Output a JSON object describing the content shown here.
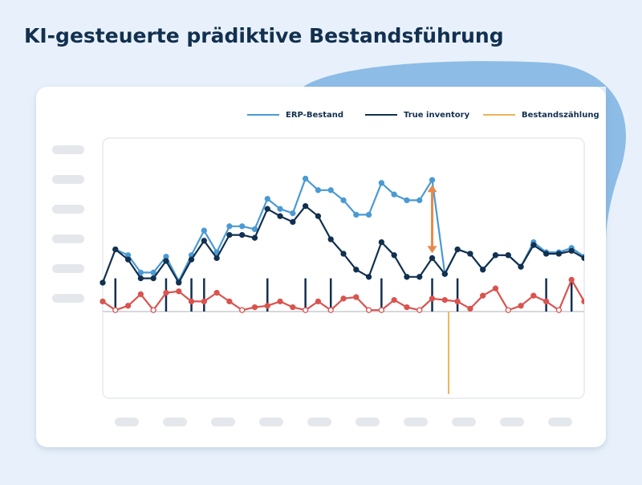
{
  "chart_data": {
    "type": "line",
    "title": "KI-gesteuerte prädiktive Bestandsführung",
    "x": [
      0,
      1,
      2,
      3,
      4,
      5,
      6,
      7,
      8,
      9,
      10,
      11,
      12,
      13,
      14,
      15,
      16,
      17,
      18,
      19,
      20,
      21,
      22,
      23,
      24,
      25,
      26,
      27,
      28,
      29,
      30,
      31,
      32,
      33,
      34,
      35,
      36,
      37,
      38
    ],
    "xlim": [
      0,
      38
    ],
    "ylim": [
      -60,
      120
    ],
    "legend": "top-right",
    "series": [
      {
        "name": "ERP-Bestand",
        "color": "#4a9ad4",
        "values": [
          null,
          43,
          39,
          27,
          27,
          38,
          21,
          39,
          56,
          41,
          59,
          59,
          57,
          78,
          71,
          68,
          92,
          84,
          84,
          77,
          67,
          67,
          89,
          81,
          77,
          77,
          91,
          26,
          43,
          40,
          29,
          39,
          39,
          31,
          48,
          41,
          41,
          44,
          38
        ]
      },
      {
        "name": "True inventory",
        "color": "#12304f",
        "values": [
          20,
          43,
          36,
          23,
          23,
          35,
          20,
          36,
          49,
          37,
          53,
          53,
          51,
          71,
          66,
          62,
          73,
          66,
          50,
          40,
          29,
          24,
          48,
          39,
          24,
          24,
          37,
          26,
          43,
          40,
          29,
          39,
          39,
          31,
          46,
          40,
          40,
          42,
          37
        ]
      },
      {
        "color": "#d9534f",
        "values": [
          7,
          1,
          4,
          12,
          1,
          13,
          14,
          7,
          7,
          13,
          7,
          1,
          3,
          4,
          7,
          3,
          1,
          7,
          1,
          9,
          10,
          1,
          1,
          8,
          3,
          1,
          9,
          8,
          7,
          2,
          11,
          16,
          1,
          4,
          11,
          7,
          1,
          22,
          7
        ]
      }
    ],
    "bars": {
      "color": "#12304f",
      "x": [
        1,
        5,
        7,
        8,
        13,
        16,
        18,
        22,
        26,
        28,
        35,
        37
      ],
      "values": [
        23,
        23,
        23,
        23,
        23,
        23,
        23,
        23,
        23,
        23,
        23,
        23
      ]
    },
    "counts": {
      "name": "Bestandszählung",
      "color": "#f0b35a",
      "x": [
        27.3
      ],
      "values": [
        -57
      ]
    }
  }
}
